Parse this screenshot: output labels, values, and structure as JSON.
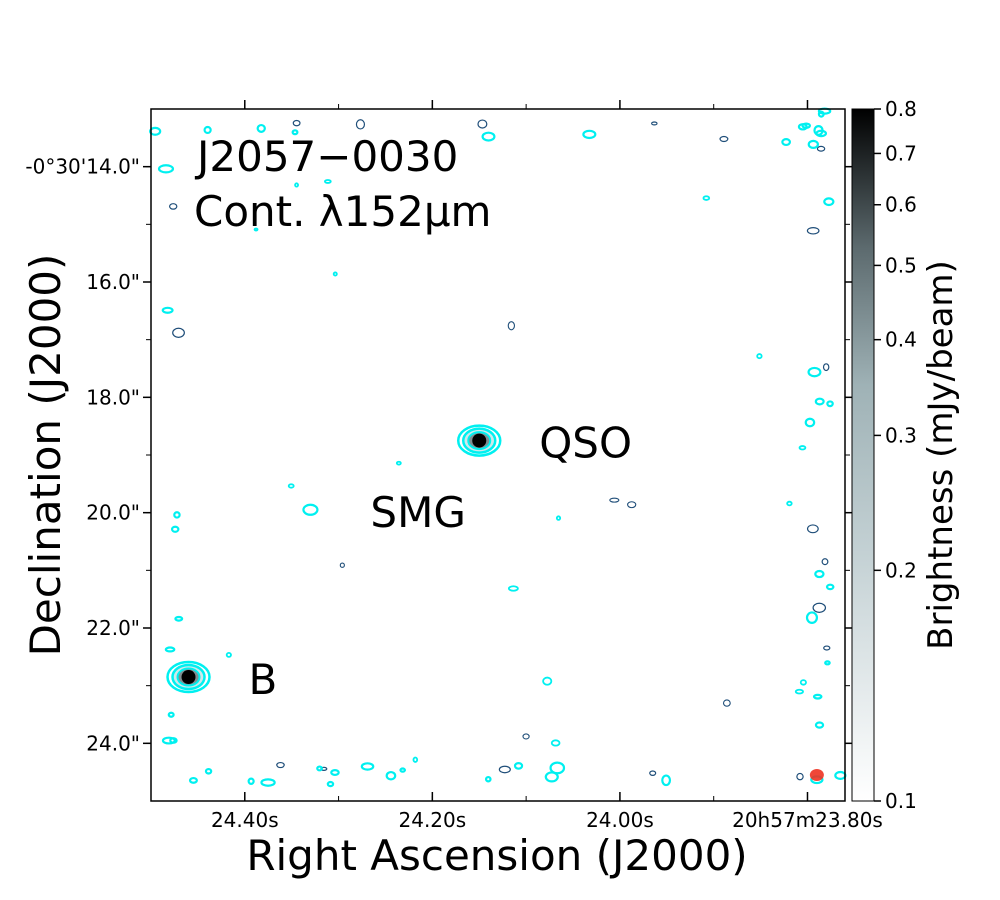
{
  "chart_data": {
    "type": "heatmap",
    "title": "J2057−0030",
    "subtitle": "Cont. λ152μm",
    "xlabel": "Right Ascension (J2000)",
    "ylabel": "Declination (J2000)",
    "x_ticks": [
      {
        "value": 24.4,
        "label": "24.40s"
      },
      {
        "value": 24.2,
        "label": "24.20s"
      },
      {
        "value": 24.0,
        "label": "24.00s"
      },
      {
        "value": 23.8,
        "label": "20h57m23.80s"
      }
    ],
    "y_ticks": [
      {
        "value": 14.0,
        "label": "-0°30'14.0\""
      },
      {
        "value": 16.0,
        "label": "16.0\""
      },
      {
        "value": 18.0,
        "label": "18.0\""
      },
      {
        "value": 20.0,
        "label": "20.0\""
      },
      {
        "value": 22.0,
        "label": "22.0\""
      },
      {
        "value": 24.0,
        "label": "24.0\""
      }
    ],
    "xlim": [
      24.5,
      23.76
    ],
    "ylim": [
      25.0,
      13.0
    ],
    "colorbar": {
      "label": "Brightness (mJy/beam)",
      "range": [
        0.1,
        0.8
      ],
      "scale": "log",
      "ticks": [
        {
          "value": 0.8,
          "label": "0.8"
        },
        {
          "value": 0.7,
          "label": "0.7"
        },
        {
          "value": 0.6,
          "label": "0.6"
        },
        {
          "value": 0.5,
          "label": "0.5"
        },
        {
          "value": 0.4,
          "label": "0.4"
        },
        {
          "value": 0.3,
          "label": "0.3"
        },
        {
          "value": 0.2,
          "label": "0.2"
        },
        {
          "value": 0.1,
          "label": "0.1"
        }
      ],
      "colors": {
        "low": "#ffffff",
        "mid": "#9fb2b6",
        "high": "#000000"
      }
    },
    "sources": [
      {
        "name": "QSO",
        "ra_s": 24.15,
        "dec_arcsec": 18.75,
        "peak": 0.8
      },
      {
        "name": "SMG",
        "ra_s": 24.33,
        "dec_arcsec": 19.95,
        "peak": 0.14
      },
      {
        "name": "B",
        "ra_s": 24.46,
        "dec_arcsec": 22.85,
        "peak": 0.8
      }
    ],
    "contour_colors": {
      "positive": "#00f0f0",
      "negative": "#1f4e79"
    },
    "beam": {
      "ra_s": 23.79,
      "dec_arcsec": 24.55,
      "color": "#ee3322"
    }
  }
}
